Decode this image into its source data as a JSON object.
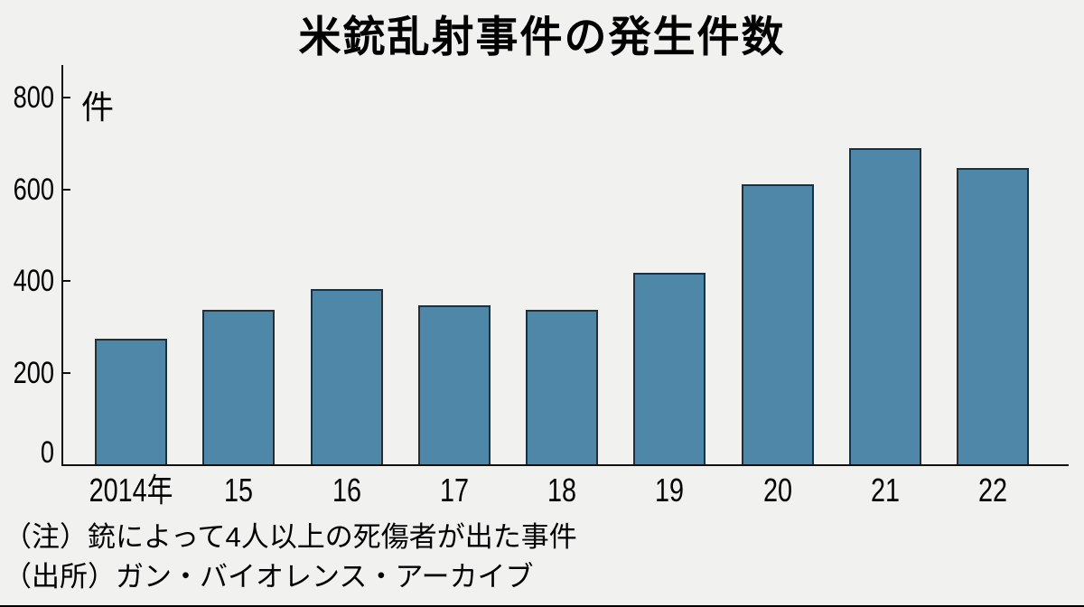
{
  "page": {
    "background": "#f1f1ef",
    "bottom_edge_color": "#000000"
  },
  "chart_data": {
    "type": "bar",
    "title": "米銃乱射事件の発生件数",
    "unit_label": "件",
    "categories": [
      "2014年",
      "15",
      "16",
      "17",
      "18",
      "19",
      "20",
      "21",
      "22"
    ],
    "values": [
      273,
      336,
      383,
      346,
      336,
      417,
      610,
      690,
      647
    ],
    "yticks": [
      0,
      200,
      400,
      600,
      800
    ],
    "ylim": [
      0,
      870
    ],
    "grid": false,
    "legend": "none",
    "bar_color": "#4e87a8",
    "bar_border_color": "#20303a",
    "axis_color": "#111111"
  },
  "notes": {
    "note_line": "（注）銃によって4人以上の死傷者が出た事件",
    "source_line": "（出所）ガン・バイオレンス・アーカイブ"
  }
}
